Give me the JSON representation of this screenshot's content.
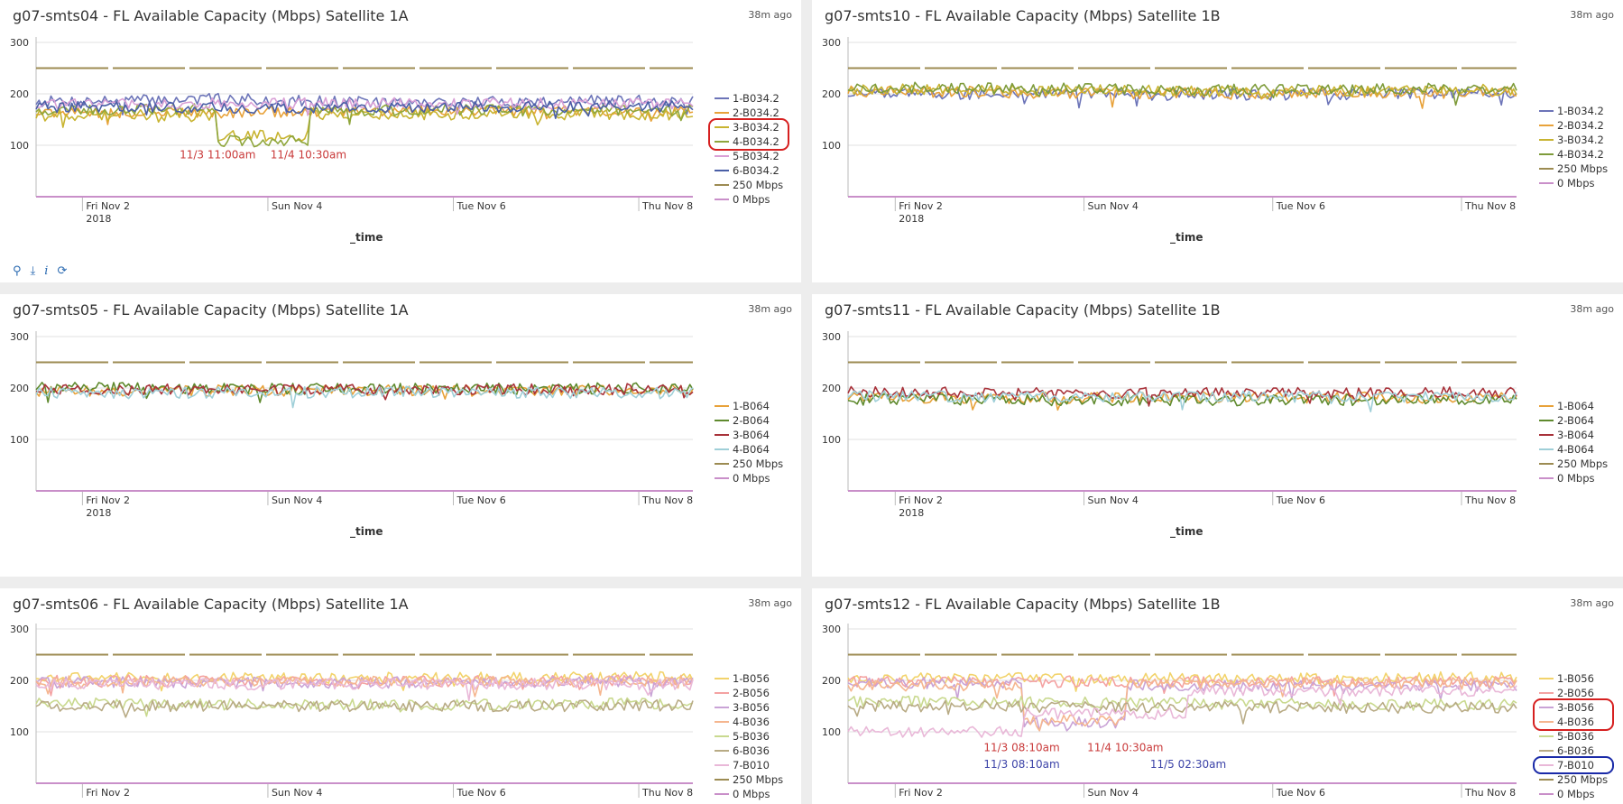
{
  "toolbar": {
    "icons": [
      "search-icon",
      "download-icon",
      "info-icon",
      "refresh-icon"
    ],
    "info_glyph": "i"
  },
  "panels": [
    {
      "title": "g07-smts04 - FL Available Capacity (Mbps) Satellite 1A",
      "ago": "38m ago"
    },
    {
      "title": "g07-smts10 - FL Available Capacity (Mbps) Satellite 1B",
      "ago": "38m ago"
    },
    {
      "title": "g07-smts05 - FL Available Capacity (Mbps) Satellite 1A",
      "ago": "38m ago"
    },
    {
      "title": "g07-smts11 - FL Available Capacity (Mbps) Satellite 1B",
      "ago": "38m ago"
    },
    {
      "title": "g07-smts06 - FL Available Capacity (Mbps) Satellite 1A",
      "ago": "38m ago"
    },
    {
      "title": "g07-smts12 - FL Available Capacity (Mbps) Satellite 1B",
      "ago": "38m ago"
    }
  ],
  "chart_data": [
    {
      "type": "line",
      "title": "g07-smts04 - FL Available Capacity (Mbps) Satellite 1A",
      "xlabel": "_time",
      "ylim": [
        0,
        300
      ],
      "yticks": [
        100,
        200,
        300
      ],
      "xlim": [
        "2018-11-01 12:00",
        "2018-11-08 14:00"
      ],
      "xticks": [
        {
          "date": "2018-11-02",
          "label": "Fri Nov 2",
          "sub": "2018"
        },
        {
          "date": "2018-11-04",
          "label": "Sun Nov 4"
        },
        {
          "date": "2018-11-06",
          "label": "Tue Nov 6"
        },
        {
          "date": "2018-11-08",
          "label": "Thu Nov 8"
        }
      ],
      "legend_position": "right",
      "series": [
        {
          "name": "1-B034.2",
          "color": "#6c74b8",
          "x": [
            "2018-11-01 12:00",
            "2018-11-03 12:00",
            "2018-11-05 12:00",
            "2018-11-08 14:00"
          ],
          "y": [
            185,
            190,
            183,
            188
          ]
        },
        {
          "name": "2-B034.2",
          "color": "#e8a23a",
          "x": [
            "2018-11-01 12:00",
            "2018-11-03 12:00",
            "2018-11-05 12:00",
            "2018-11-08 14:00"
          ],
          "y": [
            165,
            163,
            168,
            166
          ]
        },
        {
          "name": "3-B034.2",
          "color": "#c8b431",
          "x": [
            "2018-11-01 12:00",
            "2018-11-03 11:00",
            "2018-11-03 11:00",
            "2018-11-04 10:30",
            "2018-11-04 10:30",
            "2018-11-08 14:00"
          ],
          "y": [
            158,
            158,
            118,
            118,
            160,
            160
          ]
        },
        {
          "name": "4-B034.2",
          "color": "#8fa63c",
          "x": [
            "2018-11-01 12:00",
            "2018-11-03 11:00",
            "2018-11-03 11:00",
            "2018-11-04 10:30",
            "2018-11-04 10:30",
            "2018-11-08 14:00"
          ],
          "y": [
            170,
            170,
            108,
            108,
            168,
            168
          ]
        },
        {
          "name": "5-B034.2",
          "color": "#d9a0d6",
          "x": [
            "2018-11-01 12:00",
            "2018-11-04 12:00",
            "2018-11-08 14:00"
          ],
          "y": [
            180,
            182,
            180
          ]
        },
        {
          "name": "6-B034.2",
          "color": "#4a5fa6",
          "x": [
            "2018-11-01 12:00",
            "2018-11-04 12:00",
            "2018-11-08 14:00"
          ],
          "y": [
            175,
            172,
            176
          ]
        },
        {
          "name": "250 Mbps",
          "color": "#9c8b52",
          "x": [
            "2018-11-01 12:00",
            "2018-11-08 14:00"
          ],
          "y": [
            250,
            250
          ]
        },
        {
          "name": "0 Mbps",
          "color": "#c98fc9",
          "x": [
            "2018-11-01 12:00",
            "2018-11-08 14:00"
          ],
          "y": [
            0,
            0
          ]
        }
      ],
      "annotations": [
        {
          "text": "11/3 11:00am",
          "x": "2018-11-03 11:00",
          "y": 75,
          "color": "#c93a3a"
        },
        {
          "text": "11/4 10:30am",
          "x": "2018-11-04 10:30",
          "y": 75,
          "color": "#c93a3a"
        }
      ],
      "highlights": [
        {
          "color": "#d62020",
          "from": 2,
          "to": 3
        }
      ]
    },
    {
      "type": "line",
      "title": "g07-smts10 - FL Available Capacity (Mbps) Satellite 1B",
      "xlabel": "_time",
      "ylim": [
        0,
        300
      ],
      "yticks": [
        100,
        200,
        300
      ],
      "xlim": [
        "2018-11-01 12:00",
        "2018-11-08 14:00"
      ],
      "xticks": [
        {
          "date": "2018-11-02",
          "label": "Fri Nov 2",
          "sub": "2018"
        },
        {
          "date": "2018-11-04",
          "label": "Sun Nov 4"
        },
        {
          "date": "2018-11-06",
          "label": "Tue Nov 6"
        },
        {
          "date": "2018-11-08",
          "label": "Thu Nov 8"
        }
      ],
      "legend_position": "right",
      "series": [
        {
          "name": "1-B034.2",
          "color": "#6c74b8",
          "x": [
            "2018-11-01 12:00",
            "2018-11-05 12:00",
            "2018-11-08 14:00"
          ],
          "y": [
            200,
            198,
            202
          ]
        },
        {
          "name": "2-B034.2",
          "color": "#e8a23a",
          "x": [
            "2018-11-01 12:00",
            "2018-11-05 12:00",
            "2018-11-08 14:00"
          ],
          "y": [
            205,
            200,
            203
          ]
        },
        {
          "name": "3-B034.2",
          "color": "#c8b431",
          "x": [
            "2018-11-01 12:00",
            "2018-11-05 12:00",
            "2018-11-08 14:00"
          ],
          "y": [
            210,
            205,
            208
          ]
        },
        {
          "name": "4-B034.2",
          "color": "#7e9b3a",
          "x": [
            "2018-11-01 12:00",
            "2018-11-05 12:00",
            "2018-11-08 14:00"
          ],
          "y": [
            212,
            208,
            210
          ]
        },
        {
          "name": "250 Mbps",
          "color": "#9c8b52",
          "x": [
            "2018-11-01 12:00",
            "2018-11-08 14:00"
          ],
          "y": [
            250,
            250
          ]
        },
        {
          "name": "0 Mbps",
          "color": "#c98fc9",
          "x": [
            "2018-11-01 12:00",
            "2018-11-08 14:00"
          ],
          "y": [
            0,
            0
          ]
        }
      ],
      "annotations": [],
      "highlights": []
    },
    {
      "type": "line",
      "title": "g07-smts05 - FL Available Capacity (Mbps) Satellite 1A",
      "xlabel": "_time",
      "ylim": [
        0,
        300
      ],
      "yticks": [
        100,
        200,
        300
      ],
      "xlim": [
        "2018-11-01 12:00",
        "2018-11-08 14:00"
      ],
      "xticks": [
        {
          "date": "2018-11-02",
          "label": "Fri Nov 2",
          "sub": "2018"
        },
        {
          "date": "2018-11-04",
          "label": "Sun Nov 4"
        },
        {
          "date": "2018-11-06",
          "label": "Tue Nov 6"
        },
        {
          "date": "2018-11-08",
          "label": "Thu Nov 8"
        }
      ],
      "legend_position": "right",
      "series": [
        {
          "name": "1-B064",
          "color": "#e8a23a",
          "x": [
            "2018-11-01 12:00",
            "2018-11-05 12:00",
            "2018-11-08 14:00"
          ],
          "y": [
            195,
            195,
            196
          ]
        },
        {
          "name": "2-B064",
          "color": "#5f8a2e",
          "x": [
            "2018-11-01 12:00",
            "2018-11-05 12:00",
            "2018-11-08 14:00"
          ],
          "y": [
            200,
            198,
            200
          ]
        },
        {
          "name": "3-B064",
          "color": "#a8323a",
          "x": [
            "2018-11-01 12:00",
            "2018-11-05 12:00",
            "2018-11-08 14:00"
          ],
          "y": [
            197,
            196,
            198
          ]
        },
        {
          "name": "4-B064",
          "color": "#9fcfd8",
          "x": [
            "2018-11-01 12:00",
            "2018-11-05 12:00",
            "2018-11-08 14:00"
          ],
          "y": [
            190,
            192,
            190
          ]
        },
        {
          "name": "250 Mbps",
          "color": "#9c8b52",
          "x": [
            "2018-11-01 12:00",
            "2018-11-08 14:00"
          ],
          "y": [
            250,
            250
          ]
        },
        {
          "name": "0 Mbps",
          "color": "#c98fc9",
          "x": [
            "2018-11-01 12:00",
            "2018-11-08 14:00"
          ],
          "y": [
            0,
            0
          ]
        }
      ],
      "annotations": [],
      "highlights": []
    },
    {
      "type": "line",
      "title": "g07-smts11 - FL Available Capacity (Mbps) Satellite 1B",
      "xlabel": "_time",
      "ylim": [
        0,
        300
      ],
      "yticks": [
        100,
        200,
        300
      ],
      "xlim": [
        "2018-11-01 12:00",
        "2018-11-08 14:00"
      ],
      "xticks": [
        {
          "date": "2018-11-02",
          "label": "Fri Nov 2",
          "sub": "2018"
        },
        {
          "date": "2018-11-04",
          "label": "Sun Nov 4"
        },
        {
          "date": "2018-11-06",
          "label": "Tue Nov 6"
        },
        {
          "date": "2018-11-08",
          "label": "Thu Nov 8"
        }
      ],
      "legend_position": "right",
      "series": [
        {
          "name": "1-B064",
          "color": "#e8a23a",
          "x": [
            "2018-11-01 12:00",
            "2018-11-05 12:00",
            "2018-11-08 14:00"
          ],
          "y": [
            180,
            182,
            181
          ]
        },
        {
          "name": "2-B064",
          "color": "#5f8a2e",
          "x": [
            "2018-11-01 12:00",
            "2018-11-05 12:00",
            "2018-11-08 14:00"
          ],
          "y": [
            178,
            176,
            178
          ]
        },
        {
          "name": "3-B064",
          "color": "#a8323a",
          "x": [
            "2018-11-01 12:00",
            "2018-11-05 12:00",
            "2018-11-08 14:00"
          ],
          "y": [
            192,
            190,
            192
          ]
        },
        {
          "name": "4-B064",
          "color": "#9fcfd8",
          "x": [
            "2018-11-01 12:00",
            "2018-11-05 12:00",
            "2018-11-08 14:00"
          ],
          "y": [
            184,
            183,
            184
          ]
        },
        {
          "name": "250 Mbps",
          "color": "#9c8b52",
          "x": [
            "2018-11-01 12:00",
            "2018-11-08 14:00"
          ],
          "y": [
            250,
            250
          ]
        },
        {
          "name": "0 Mbps",
          "color": "#c98fc9",
          "x": [
            "2018-11-01 12:00",
            "2018-11-08 14:00"
          ],
          "y": [
            0,
            0
          ]
        }
      ],
      "annotations": [],
      "highlights": []
    },
    {
      "type": "line",
      "title": "g07-smts06 - FL Available Capacity (Mbps) Satellite 1A",
      "xlabel": "",
      "ylim": [
        0,
        300
      ],
      "yticks": [
        100,
        200,
        300
      ],
      "xlim": [
        "2018-11-01 12:00",
        "2018-11-08 14:00"
      ],
      "xticks": [
        {
          "date": "2018-11-02",
          "label": "Fri Nov 2"
        },
        {
          "date": "2018-11-04",
          "label": "Sun Nov 4"
        },
        {
          "date": "2018-11-06",
          "label": "Tue Nov 6"
        },
        {
          "date": "2018-11-08",
          "label": "Thu Nov 8"
        }
      ],
      "legend_position": "right",
      "series": [
        {
          "name": "1-B056",
          "color": "#f2d36b",
          "x": [
            "2018-11-01 12:00",
            "2018-11-05 12:00",
            "2018-11-08 14:00"
          ],
          "y": [
            205,
            205,
            206
          ]
        },
        {
          "name": "2-B056",
          "color": "#f4a2a2",
          "x": [
            "2018-11-01 12:00",
            "2018-11-05 12:00",
            "2018-11-08 14:00"
          ],
          "y": [
            200,
            198,
            200
          ]
        },
        {
          "name": "3-B056",
          "color": "#c9a3d6",
          "x": [
            "2018-11-01 12:00",
            "2018-11-05 12:00",
            "2018-11-08 14:00"
          ],
          "y": [
            196,
            196,
            197
          ]
        },
        {
          "name": "4-B036",
          "color": "#f5b68f",
          "x": [
            "2018-11-01 12:00",
            "2018-11-05 12:00",
            "2018-11-08 14:00"
          ],
          "y": [
            198,
            197,
            199
          ]
        },
        {
          "name": "5-B036",
          "color": "#c9d98f",
          "x": [
            "2018-11-01 12:00",
            "2018-11-05 12:00",
            "2018-11-08 14:00"
          ],
          "y": [
            155,
            152,
            156
          ]
        },
        {
          "name": "6-B036",
          "color": "#b8ab85",
          "x": [
            "2018-11-01 12:00",
            "2018-11-05 12:00",
            "2018-11-08 14:00"
          ],
          "y": [
            150,
            150,
            151
          ]
        },
        {
          "name": "7-B010",
          "color": "#e9b8d8",
          "x": [
            "2018-11-01 12:00",
            "2018-11-05 12:00",
            "2018-11-08 14:00"
          ],
          "y": [
            192,
            193,
            192
          ]
        },
        {
          "name": "250 Mbps",
          "color": "#9c8b52",
          "x": [
            "2018-11-01 12:00",
            "2018-11-08 14:00"
          ],
          "y": [
            250,
            250
          ]
        },
        {
          "name": "0 Mbps",
          "color": "#c98fc9",
          "x": [
            "2018-11-01 12:00",
            "2018-11-08 14:00"
          ],
          "y": [
            0,
            0
          ]
        }
      ],
      "annotations": [],
      "highlights": []
    },
    {
      "type": "line",
      "title": "g07-smts12 - FL Available Capacity (Mbps) Satellite 1B",
      "xlabel": "",
      "ylim": [
        0,
        300
      ],
      "yticks": [
        100,
        200,
        300
      ],
      "xlim": [
        "2018-11-01 12:00",
        "2018-11-08 14:00"
      ],
      "xticks": [
        {
          "date": "2018-11-02",
          "label": "Fri Nov 2"
        },
        {
          "date": "2018-11-04",
          "label": "Sun Nov 4"
        },
        {
          "date": "2018-11-06",
          "label": "Tue Nov 6"
        },
        {
          "date": "2018-11-08",
          "label": "Thu Nov 8"
        }
      ],
      "legend_position": "right",
      "series": [
        {
          "name": "1-B056",
          "color": "#f2d36b",
          "x": [
            "2018-11-01 12:00",
            "2018-11-05 12:00",
            "2018-11-08 14:00"
          ],
          "y": [
            205,
            204,
            206
          ]
        },
        {
          "name": "2-B056",
          "color": "#f4a2a2",
          "x": [
            "2018-11-01 12:00",
            "2018-11-05 12:00",
            "2018-11-08 14:00"
          ],
          "y": [
            198,
            197,
            198
          ]
        },
        {
          "name": "3-B056",
          "color": "#c9a3d6",
          "x": [
            "2018-11-01 12:00",
            "2018-11-03 08:10",
            "2018-11-03 08:10",
            "2018-11-04 10:30",
            "2018-11-04 10:30",
            "2018-11-08 14:00"
          ],
          "y": [
            195,
            195,
            118,
            118,
            190,
            190
          ]
        },
        {
          "name": "4-B036",
          "color": "#f5b68f",
          "x": [
            "2018-11-01 12:00",
            "2018-11-03 08:10",
            "2018-11-03 08:10",
            "2018-11-04 10:30",
            "2018-11-04 10:30",
            "2018-11-08 14:00"
          ],
          "y": [
            190,
            190,
            122,
            122,
            195,
            195
          ]
        },
        {
          "name": "5-B036",
          "color": "#c9d98f",
          "x": [
            "2018-11-01 12:00",
            "2018-11-05 12:00",
            "2018-11-08 14:00"
          ],
          "y": [
            160,
            155,
            152
          ]
        },
        {
          "name": "6-B036",
          "color": "#b8ab85",
          "x": [
            "2018-11-01 12:00",
            "2018-11-05 12:00",
            "2018-11-08 14:00"
          ],
          "y": [
            150,
            148,
            146
          ]
        },
        {
          "name": "7-B010",
          "color": "#e9b8d8",
          "x": [
            "2018-11-01 12:00",
            "2018-11-03 08:10",
            "2018-11-03 08:10",
            "2018-11-05 02:30",
            "2018-11-05 02:30",
            "2018-11-08 14:00"
          ],
          "y": [
            100,
            100,
            135,
            135,
            180,
            180
          ]
        },
        {
          "name": "250 Mbps",
          "color": "#9c8b52",
          "x": [
            "2018-11-01 12:00",
            "2018-11-08 14:00"
          ],
          "y": [
            250,
            250
          ]
        },
        {
          "name": "0 Mbps",
          "color": "#c98fc9",
          "x": [
            "2018-11-01 12:00",
            "2018-11-08 14:00"
          ],
          "y": [
            0,
            0
          ]
        }
      ],
      "annotations": [
        {
          "text": "11/3 08:10am",
          "x": "2018-11-03 08:10",
          "y": 62,
          "color": "#c93a3a"
        },
        {
          "text": "11/4 10:30am",
          "x": "2018-11-04 10:30",
          "y": 62,
          "color": "#c93a3a"
        },
        {
          "text": "11/3 08:10am",
          "x": "2018-11-03 08:10",
          "y": 30,
          "color": "#3c43a8"
        },
        {
          "text": "11/5 02:30am",
          "x": "2018-11-05 02:30",
          "y": 30,
          "color": "#3c43a8"
        }
      ],
      "highlights": [
        {
          "color": "#d62020",
          "from": 2,
          "to": 3
        },
        {
          "color": "#1a2aa8",
          "from": 6,
          "to": 6
        }
      ]
    }
  ]
}
